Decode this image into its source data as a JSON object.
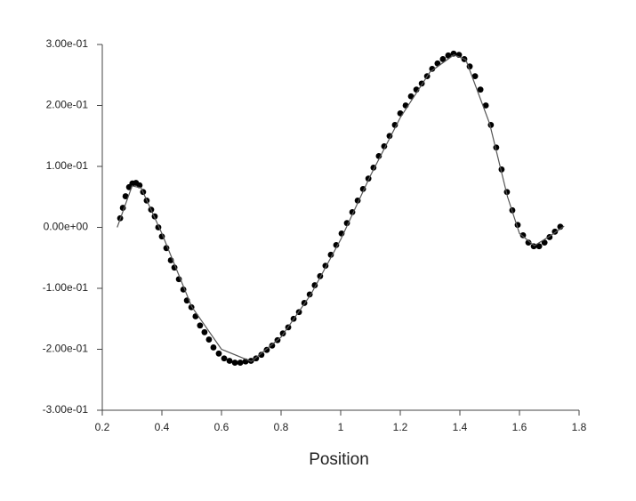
{
  "chart_data": {
    "type": "scatter",
    "xlabel": "Position",
    "xlim": [
      0.2,
      1.8
    ],
    "xticks": [
      0.2,
      0.4,
      0.6,
      0.8,
      1,
      1.2,
      1.4,
      1.6,
      1.8
    ],
    "ylim": [
      -0.3,
      0.3
    ],
    "yticks": [
      {
        "value": -0.3,
        "label": "-3.00e-01"
      },
      {
        "value": -0.2,
        "label": "-2.00e-01"
      },
      {
        "value": -0.1,
        "label": "-1.00e-01"
      },
      {
        "value": 0,
        "label": "0.00e+00"
      },
      {
        "value": 0.1,
        "label": "1.00e-01"
      },
      {
        "value": 0.2,
        "label": "2.00e-01"
      },
      {
        "value": 0.3,
        "label": "3.00e-01"
      }
    ],
    "series": [
      {
        "type": "scatter",
        "color": "#000000",
        "x": [
          0.26,
          0.269,
          0.278,
          0.29,
          0.301,
          0.313,
          0.325,
          0.337,
          0.349,
          0.364,
          0.376,
          0.388,
          0.4,
          0.415,
          0.43,
          0.442,
          0.457,
          0.472,
          0.484,
          0.499,
          0.513,
          0.528,
          0.543,
          0.558,
          0.573,
          0.591,
          0.609,
          0.627,
          0.645,
          0.663,
          0.681,
          0.699,
          0.716,
          0.734,
          0.752,
          0.77,
          0.788,
          0.806,
          0.824,
          0.842,
          0.86,
          0.878,
          0.896,
          0.913,
          0.931,
          0.949,
          0.967,
          0.985,
          1.003,
          1.021,
          1.039,
          1.057,
          1.075,
          1.093,
          1.11,
          1.128,
          1.146,
          1.164,
          1.182,
          1.2,
          1.218,
          1.236,
          1.254,
          1.272,
          1.29,
          1.307,
          1.325,
          1.343,
          1.361,
          1.379,
          1.397,
          1.415,
          1.433,
          1.451,
          1.469,
          1.487,
          1.504,
          1.522,
          1.54,
          1.558,
          1.576,
          1.594,
          1.612,
          1.63,
          1.648,
          1.666,
          1.684,
          1.701,
          1.719,
          1.737
        ],
        "values": [
          0.015,
          0.032,
          0.051,
          0.066,
          0.072,
          0.073,
          0.069,
          0.058,
          0.044,
          0.029,
          0.018,
          0.0,
          -0.015,
          -0.034,
          -0.054,
          -0.066,
          -0.085,
          -0.102,
          -0.12,
          -0.131,
          -0.146,
          -0.161,
          -0.172,
          -0.184,
          -0.197,
          -0.207,
          -0.215,
          -0.219,
          -0.222,
          -0.222,
          -0.22,
          -0.219,
          -0.215,
          -0.209,
          -0.201,
          -0.194,
          -0.185,
          -0.174,
          -0.164,
          -0.15,
          -0.139,
          -0.124,
          -0.11,
          -0.095,
          -0.08,
          -0.063,
          -0.045,
          -0.029,
          -0.01,
          0.007,
          0.025,
          0.044,
          0.063,
          0.08,
          0.098,
          0.117,
          0.133,
          0.15,
          0.168,
          0.187,
          0.2,
          0.215,
          0.226,
          0.236,
          0.248,
          0.26,
          0.269,
          0.276,
          0.282,
          0.285,
          0.283,
          0.276,
          0.264,
          0.248,
          0.226,
          0.2,
          0.168,
          0.131,
          0.095,
          0.058,
          0.028,
          0.004,
          -0.013,
          -0.025,
          -0.031,
          -0.031,
          -0.025,
          -0.016,
          -0.007,
          0.001
        ]
      },
      {
        "type": "line",
        "color": "#555555",
        "x": [
          0.25,
          0.3,
          0.33,
          0.4,
          0.5,
          0.6,
          0.7,
          0.8,
          0.9,
          1.0,
          1.1,
          1.2,
          1.3,
          1.38,
          1.42,
          1.5,
          1.56,
          1.6,
          1.65,
          1.7,
          1.75
        ],
        "values": [
          0,
          0.068,
          0.065,
          -0.01,
          -0.13,
          -0.2,
          -0.22,
          -0.18,
          -0.11,
          -0.02,
          0.085,
          0.18,
          0.255,
          0.283,
          0.275,
          0.17,
          0.05,
          -0.01,
          -0.03,
          -0.015,
          0.002
        ]
      }
    ]
  }
}
